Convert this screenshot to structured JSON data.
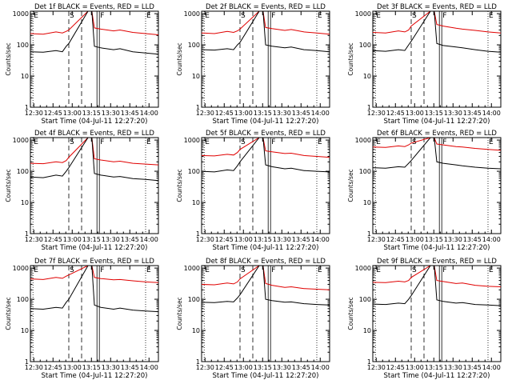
{
  "figure": {
    "x_tick_labels": [
      "12:30",
      "12:45",
      "13:00",
      "13:15",
      "13:30",
      "13:45",
      "14:00"
    ],
    "y_tick_labels": [
      "1000",
      "100",
      "10",
      "1"
    ],
    "xlabel": "Start Time (04-Jul-11 12:27:20)",
    "ylabel": "Counts/sec",
    "colors": {
      "events": "#000000",
      "lld": "#e00000",
      "axes": "#000000",
      "background": "#ffffff"
    }
  },
  "chart_data": [
    {
      "type": "line",
      "title": "Det 1f BLACK = Events, RED = LLD",
      "xlabel": "Start Time (04-Jul-11 12:27:20)",
      "ylabel": "Counts/sec",
      "x_unit": "minutes after 12:27:20",
      "xlim": [
        0,
        100
      ],
      "ylim": [
        1,
        1200
      ],
      "yscale": "log",
      "markers": {
        "E": [
          2,
          90
        ],
        "S": [
          30
        ],
        "F": [
          52
        ]
      },
      "series": [
        {
          "name": "BLACK = Events",
          "color": "#000000",
          "x": [
            0,
            10,
            20,
            25,
            28,
            30,
            45,
            48,
            50,
            55,
            65,
            70,
            80,
            90,
            100
          ],
          "y": [
            60,
            58,
            65,
            60,
            90,
            110,
            1200,
            1200,
            90,
            80,
            70,
            75,
            60,
            55,
            50
          ]
        },
        {
          "name": "RED = LLD",
          "color": "#e00000",
          "x": [
            0,
            10,
            20,
            25,
            28,
            30,
            45,
            48,
            50,
            55,
            65,
            70,
            80,
            90,
            100
          ],
          "y": [
            230,
            220,
            260,
            240,
            270,
            300,
            1200,
            1200,
            350,
            320,
            280,
            300,
            250,
            230,
            210
          ]
        }
      ]
    },
    {
      "type": "line",
      "title": "Det 2f BLACK = Events, RED = LLD",
      "xlabel": "Start Time (04-Jul-11 12:27:20)",
      "ylabel": "Counts/sec",
      "x_unit": "minutes after 12:27:20",
      "xlim": [
        0,
        100
      ],
      "ylim": [
        1,
        1200
      ],
      "yscale": "log",
      "markers": {
        "E": [
          2,
          90
        ],
        "S": [
          30
        ],
        "F": [
          52
        ]
      },
      "series": [
        {
          "name": "BLACK = Events",
          "color": "#000000",
          "x": [
            0,
            10,
            20,
            25,
            28,
            30,
            45,
            48,
            50,
            55,
            65,
            70,
            80,
            90,
            100
          ],
          "y": [
            70,
            68,
            75,
            70,
            100,
            120,
            1200,
            1200,
            100,
            90,
            80,
            85,
            70,
            65,
            60
          ]
        },
        {
          "name": "RED = LLD",
          "color": "#e00000",
          "x": [
            0,
            10,
            20,
            25,
            28,
            30,
            45,
            48,
            50,
            55,
            65,
            70,
            80,
            90,
            100
          ],
          "y": [
            240,
            230,
            270,
            250,
            280,
            320,
            1200,
            1200,
            360,
            330,
            290,
            310,
            260,
            240,
            220
          ]
        }
      ]
    },
    {
      "type": "line",
      "title": "Det 3f BLACK = Events, RED = LLD",
      "xlabel": "Start Time (04-Jul-11 12:27:20)",
      "ylabel": "Counts/sec",
      "x_unit": "minutes after 12:27:20",
      "xlim": [
        0,
        100
      ],
      "ylim": [
        1,
        1200
      ],
      "yscale": "log",
      "markers": {
        "E": [
          2,
          90
        ],
        "S": [
          30
        ],
        "F": [
          52
        ]
      },
      "series": [
        {
          "name": "BLACK = Events",
          "color": "#000000",
          "x": [
            0,
            10,
            20,
            25,
            28,
            30,
            45,
            48,
            50,
            55,
            65,
            70,
            80,
            90,
            100
          ],
          "y": [
            65,
            62,
            70,
            66,
            100,
            130,
            1200,
            1200,
            110,
            95,
            85,
            80,
            70,
            62,
            58
          ]
        },
        {
          "name": "RED = LLD",
          "color": "#e00000",
          "x": [
            0,
            10,
            20,
            25,
            28,
            30,
            45,
            48,
            50,
            55,
            65,
            70,
            80,
            90,
            100
          ],
          "y": [
            250,
            240,
            280,
            260,
            300,
            400,
            1200,
            1200,
            450,
            400,
            340,
            320,
            290,
            260,
            240
          ]
        }
      ]
    },
    {
      "type": "line",
      "title": "Det 4f BLACK = Events, RED = LLD",
      "xlabel": "Start Time (04-Jul-11 12:27:20)",
      "ylabel": "Counts/sec",
      "x_unit": "minutes after 12:27:20",
      "xlim": [
        0,
        100
      ],
      "ylim": [
        1,
        1200
      ],
      "yscale": "log",
      "markers": {
        "E": [
          2,
          90
        ],
        "S": [
          30
        ],
        "F": [
          52
        ]
      },
      "series": [
        {
          "name": "BLACK = Events",
          "color": "#000000",
          "x": [
            0,
            10,
            20,
            25,
            28,
            30,
            45,
            48,
            50,
            55,
            65,
            70,
            80,
            90,
            100
          ],
          "y": [
            65,
            62,
            75,
            70,
            100,
            130,
            1200,
            1200,
            85,
            75,
            65,
            68,
            58,
            55,
            50
          ]
        },
        {
          "name": "RED = LLD",
          "color": "#e00000",
          "x": [
            0,
            10,
            20,
            25,
            28,
            30,
            45,
            48,
            50,
            55,
            65,
            70,
            80,
            90,
            100
          ],
          "y": [
            180,
            175,
            200,
            190,
            220,
            280,
            1200,
            1200,
            250,
            230,
            200,
            210,
            180,
            170,
            160
          ]
        }
      ]
    },
    {
      "type": "line",
      "title": "Det 5f BLACK = Events, RED = LLD",
      "xlabel": "Start Time (04-Jul-11 12:27:20)",
      "ylabel": "Counts/sec",
      "x_unit": "minutes after 12:27:20",
      "xlim": [
        0,
        100
      ],
      "ylim": [
        1,
        1200
      ],
      "yscale": "log",
      "markers": {
        "E": [
          2,
          90
        ],
        "S": [
          30
        ],
        "F": [
          52
        ]
      },
      "series": [
        {
          "name": "BLACK = Events",
          "color": "#000000",
          "x": [
            0,
            10,
            20,
            25,
            28,
            30,
            45,
            48,
            50,
            55,
            65,
            70,
            80,
            90,
            100
          ],
          "y": [
            100,
            95,
            110,
            105,
            150,
            200,
            1200,
            1200,
            160,
            140,
            120,
            125,
            105,
            100,
            95
          ]
        },
        {
          "name": "RED = LLD",
          "color": "#e00000",
          "x": [
            0,
            10,
            20,
            25,
            28,
            30,
            45,
            48,
            50,
            55,
            65,
            70,
            80,
            90,
            100
          ],
          "y": [
            320,
            310,
            350,
            330,
            400,
            500,
            1200,
            1200,
            450,
            420,
            370,
            380,
            320,
            300,
            280
          ]
        }
      ]
    },
    {
      "type": "line",
      "title": "Det 6f BLACK = Events, RED = LLD",
      "xlabel": "Start Time (04-Jul-11 12:27:20)",
      "ylabel": "Counts/sec",
      "x_unit": "minutes after 12:27:20",
      "xlim": [
        0,
        100
      ],
      "ylim": [
        1,
        1200
      ],
      "yscale": "log",
      "markers": {
        "E": [
          2,
          90
        ],
        "S": [
          30
        ],
        "F": [
          52
        ]
      },
      "series": [
        {
          "name": "BLACK = Events",
          "color": "#000000",
          "x": [
            0,
            10,
            20,
            25,
            28,
            30,
            45,
            48,
            50,
            55,
            65,
            70,
            80,
            90,
            100
          ],
          "y": [
            130,
            125,
            140,
            135,
            180,
            220,
            1200,
            1200,
            200,
            180,
            160,
            150,
            135,
            125,
            120
          ]
        },
        {
          "name": "RED = LLD",
          "color": "#e00000",
          "x": [
            0,
            10,
            20,
            25,
            28,
            30,
            45,
            48,
            50,
            55,
            65,
            70,
            80,
            90,
            100
          ],
          "y": [
            600,
            580,
            650,
            620,
            700,
            800,
            1200,
            1200,
            750,
            700,
            620,
            600,
            540,
            500,
            470
          ]
        }
      ]
    },
    {
      "type": "line",
      "title": "Det 7f BLACK = Events, RED = LLD",
      "xlabel": "Start Time (04-Jul-11 12:27:20)",
      "ylabel": "Counts/sec",
      "x_unit": "minutes after 12:27:20",
      "xlim": [
        0,
        100
      ],
      "ylim": [
        1,
        1200
      ],
      "yscale": "log",
      "markers": {
        "E": [
          2,
          90
        ],
        "S": [
          30
        ],
        "F": [
          52
        ]
      },
      "series": [
        {
          "name": "BLACK = Events",
          "color": "#000000",
          "x": [
            0,
            10,
            20,
            25,
            28,
            30,
            45,
            48,
            50,
            55,
            65,
            70,
            80,
            90,
            100
          ],
          "y": [
            50,
            48,
            55,
            52,
            80,
            100,
            1200,
            1200,
            65,
            55,
            48,
            52,
            45,
            42,
            40
          ]
        },
        {
          "name": "RED = LLD",
          "color": "#e00000",
          "x": [
            0,
            10,
            20,
            25,
            28,
            30,
            45,
            48,
            50,
            55,
            65,
            70,
            80,
            90,
            100
          ],
          "y": [
            450,
            430,
            500,
            470,
            550,
            600,
            1200,
            1200,
            500,
            460,
            420,
            430,
            390,
            360,
            340
          ]
        }
      ]
    },
    {
      "type": "line",
      "title": "Det 8f BLACK = Events, RED = LLD",
      "xlabel": "Start Time (04-Jul-11 12:27:20)",
      "ylabel": "Counts/sec",
      "x_unit": "minutes after 12:27:20",
      "xlim": [
        0,
        100
      ],
      "ylim": [
        1,
        1200
      ],
      "yscale": "log",
      "markers": {
        "E": [
          2,
          90
        ],
        "S": [
          30
        ],
        "F": [
          52
        ]
      },
      "series": [
        {
          "name": "BLACK = Events",
          "color": "#000000",
          "x": [
            0,
            10,
            20,
            25,
            28,
            30,
            45,
            48,
            50,
            55,
            65,
            70,
            80,
            90,
            100
          ],
          "y": [
            80,
            78,
            85,
            82,
            110,
            140,
            1200,
            1200,
            100,
            90,
            80,
            82,
            72,
            68,
            65
          ]
        },
        {
          "name": "RED = LLD",
          "color": "#e00000",
          "x": [
            0,
            10,
            20,
            25,
            28,
            30,
            45,
            48,
            50,
            55,
            65,
            70,
            80,
            90,
            100
          ],
          "y": [
            300,
            290,
            330,
            310,
            360,
            450,
            1200,
            1200,
            320,
            280,
            240,
            250,
            220,
            210,
            200
          ]
        }
      ]
    },
    {
      "type": "line",
      "title": "Det 9f BLACK = Events, RED = LLD",
      "xlabel": "Start Time (04-Jul-11 12:27:20)",
      "ylabel": "Counts/sec",
      "x_unit": "minutes after 12:27:20",
      "xlim": [
        0,
        100
      ],
      "ylim": [
        1,
        1200
      ],
      "yscale": "log",
      "markers": {
        "E": [
          2,
          90
        ],
        "S": [
          30
        ],
        "F": [
          52
        ]
      },
      "series": [
        {
          "name": "BLACK = Events",
          "color": "#000000",
          "x": [
            0,
            10,
            20,
            25,
            28,
            30,
            45,
            48,
            50,
            55,
            65,
            70,
            80,
            90,
            100
          ],
          "y": [
            70,
            68,
            75,
            72,
            100,
            130,
            1200,
            1200,
            95,
            85,
            75,
            78,
            68,
            65,
            62
          ]
        },
        {
          "name": "RED = LLD",
          "color": "#e00000",
          "x": [
            0,
            10,
            20,
            25,
            28,
            30,
            45,
            48,
            50,
            55,
            65,
            70,
            80,
            90,
            100
          ],
          "y": [
            350,
            340,
            380,
            360,
            400,
            500,
            1200,
            1200,
            400,
            370,
            320,
            330,
            280,
            260,
            250
          ]
        }
      ]
    }
  ]
}
